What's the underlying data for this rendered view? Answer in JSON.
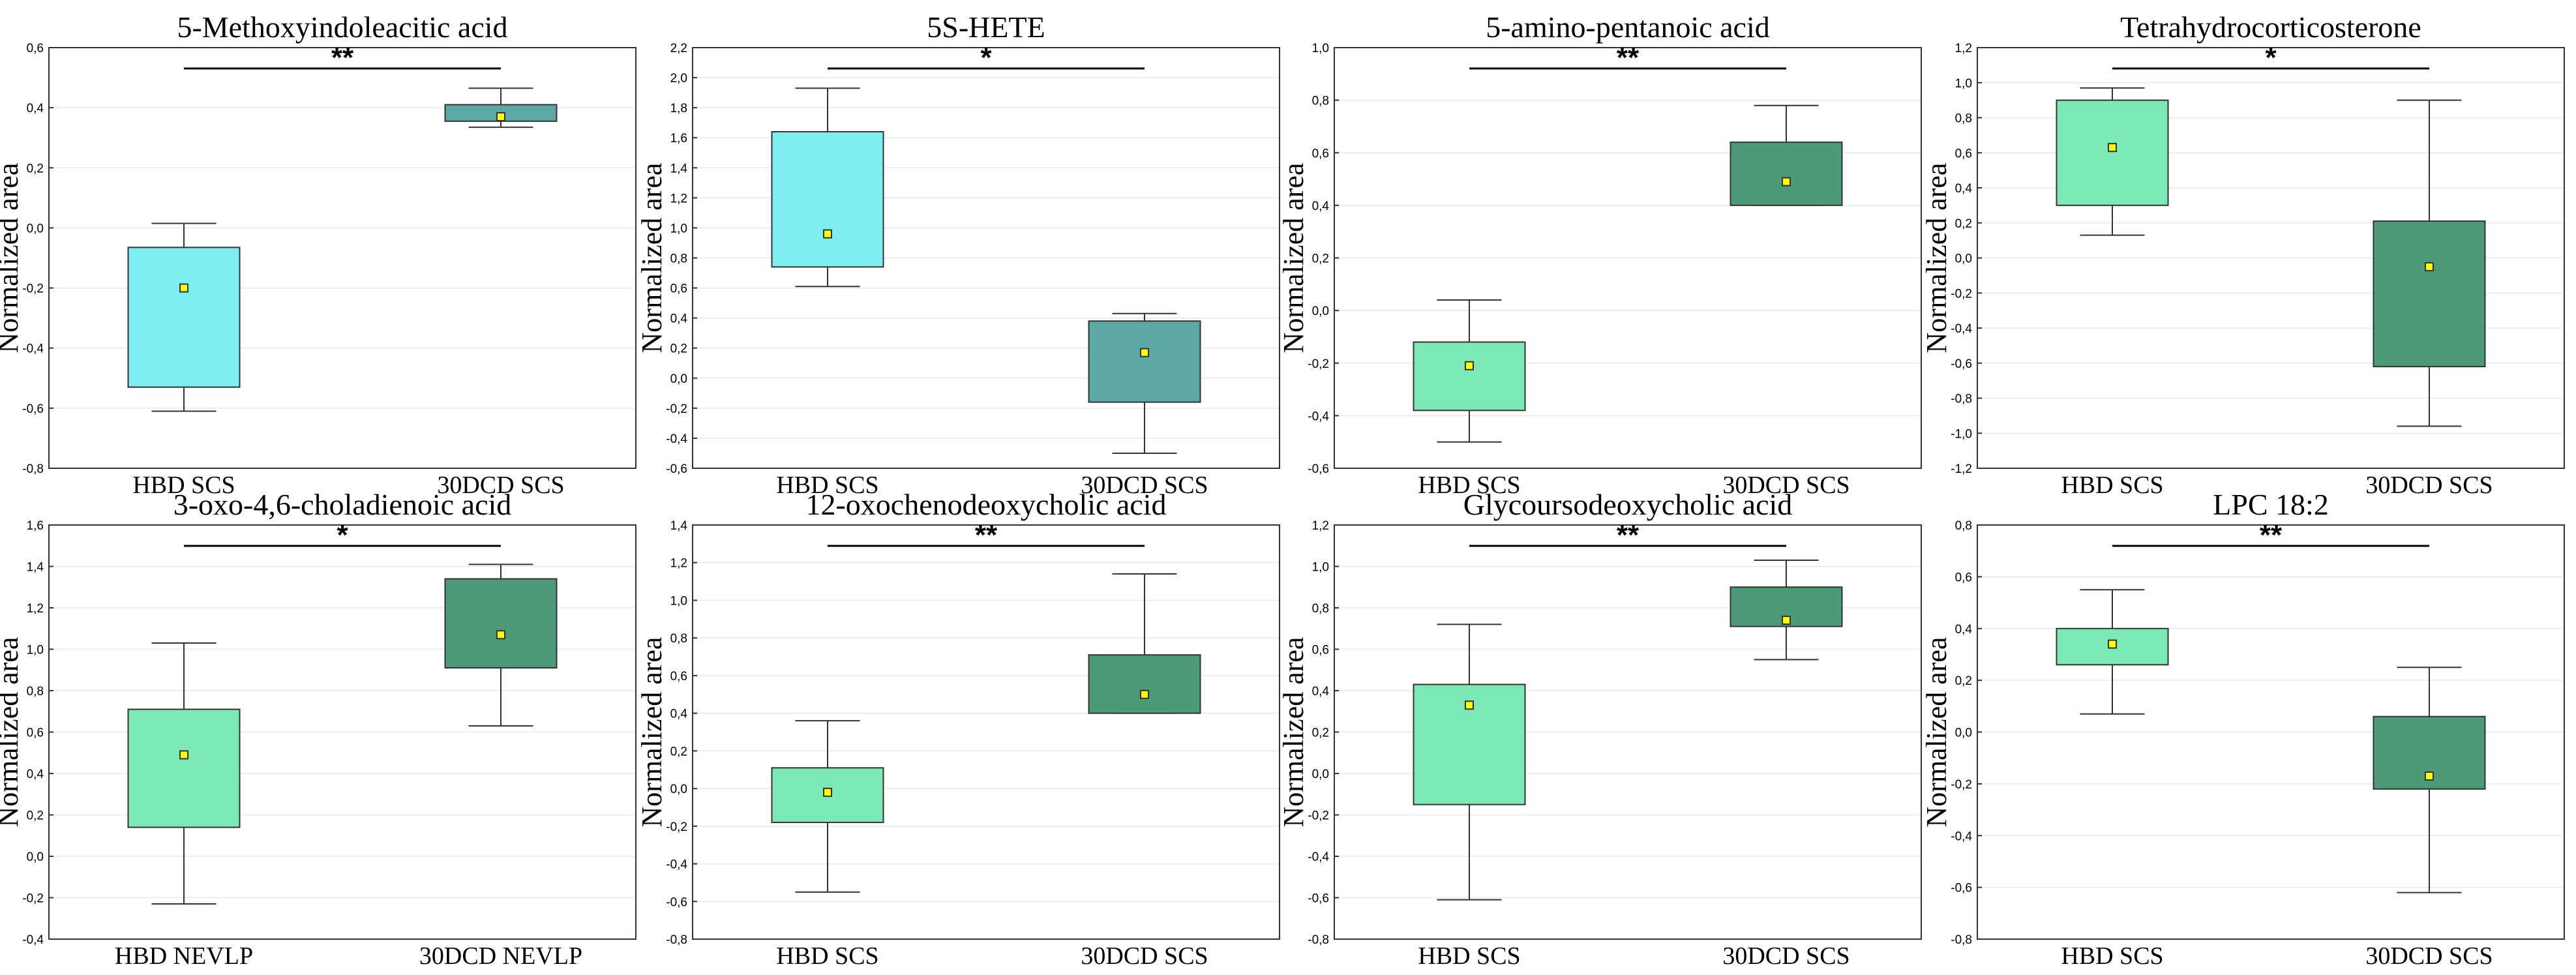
{
  "ylabel": "Normalized area",
  "colors": {
    "cyan": "#7eeff0",
    "teal": "#5ba8a6",
    "mint": "#7ce9b4",
    "green": "#4e9a78",
    "mean_marker": "#ffff00"
  },
  "chart_data": [
    {
      "type": "box",
      "title": "5-Methoxyindoleacitic acid",
      "ylabel": "Normalized area",
      "ylim": [
        -0.8,
        0.6
      ],
      "yticks": [
        "-0,8",
        "-0,6",
        "-0,4",
        "-0,2",
        "0,0",
        "0,2",
        "0,4",
        "0,6"
      ],
      "categories": [
        "HBD SCS",
        "30DCD SCS"
      ],
      "significance": "**",
      "series": [
        {
          "name": "HBD SCS",
          "whisker_low": -0.61,
          "q1": -0.53,
          "q3": -0.065,
          "whisker_high": 0.015,
          "mean": -0.2,
          "color": "#7eeff0"
        },
        {
          "name": "30DCD SCS",
          "whisker_low": 0.335,
          "q1": 0.355,
          "q3": 0.41,
          "whisker_high": 0.465,
          "mean": 0.37,
          "color": "#5ba8a6"
        }
      ]
    },
    {
      "type": "box",
      "title": "5S-HETE",
      "ylabel": "Normalized area",
      "ylim": [
        -0.6,
        2.2
      ],
      "yticks": [
        "-0,6",
        "-0,4",
        "-0,2",
        "0,0",
        "0,2",
        "0,4",
        "0,6",
        "0,8",
        "1,0",
        "1,2",
        "1,4",
        "1,6",
        "1,8",
        "2,0",
        "2,2"
      ],
      "categories": [
        "HBD SCS",
        "30DCD SCS"
      ],
      "significance": "*",
      "series": [
        {
          "name": "HBD SCS",
          "whisker_low": 0.61,
          "q1": 0.74,
          "q3": 1.64,
          "whisker_high": 1.93,
          "mean": 0.96,
          "color": "#7eeff0"
        },
        {
          "name": "30DCD SCS",
          "whisker_low": -0.5,
          "q1": -0.16,
          "q3": 0.38,
          "whisker_high": 0.43,
          "mean": 0.17,
          "color": "#5ba8a6"
        }
      ]
    },
    {
      "type": "box",
      "title": "5-amino-pentanoic acid",
      "ylabel": "Normalized area",
      "ylim": [
        -0.6,
        1.0
      ],
      "yticks": [
        "-0,6",
        "-0,4",
        "-0,2",
        "0,0",
        "0,2",
        "0,4",
        "0,6",
        "0,8",
        "1,0"
      ],
      "categories": [
        "HBD SCS",
        "30DCD SCS"
      ],
      "significance": "**",
      "series": [
        {
          "name": "HBD SCS",
          "whisker_low": -0.5,
          "q1": -0.38,
          "q3": -0.12,
          "whisker_high": 0.04,
          "mean": -0.21,
          "color": "#7ce9b4"
        },
        {
          "name": "30DCD SCS",
          "whisker_low": 0.4,
          "q1": 0.4,
          "q3": 0.64,
          "whisker_high": 0.78,
          "mean": 0.49,
          "color": "#4e9a78"
        }
      ]
    },
    {
      "type": "box",
      "title": "Tetrahydrocorticosterone",
      "ylabel": "Normalized area",
      "ylim": [
        -1.2,
        1.2
      ],
      "yticks": [
        "-1,2",
        "-1,0",
        "-0,8",
        "-0,6",
        "-0,4",
        "-0,2",
        "0,0",
        "0,2",
        "0,4",
        "0,6",
        "0,8",
        "1,0",
        "1,2"
      ],
      "categories": [
        "HBD SCS",
        "30DCD SCS"
      ],
      "significance": "*",
      "series": [
        {
          "name": "HBD SCS",
          "whisker_low": 0.13,
          "q1": 0.3,
          "q3": 0.9,
          "whisker_high": 0.97,
          "mean": 0.63,
          "color": "#7ce9b4"
        },
        {
          "name": "30DCD SCS",
          "whisker_low": -0.96,
          "q1": -0.62,
          "q3": 0.21,
          "whisker_high": 0.9,
          "mean": -0.05,
          "color": "#4e9a78"
        }
      ]
    },
    {
      "type": "box",
      "title": "3-oxo-4,6-choladienoic acid",
      "ylabel": "Normalized area",
      "ylim": [
        -0.4,
        1.6
      ],
      "yticks": [
        "-0,4",
        "-0,2",
        "0,0",
        "0,2",
        "0,4",
        "0,6",
        "0,8",
        "1,0",
        "1,2",
        "1,4",
        "1,6"
      ],
      "categories": [
        "HBD NEVLP",
        "30DCD NEVLP"
      ],
      "significance": "*",
      "series": [
        {
          "name": "HBD NEVLP",
          "whisker_low": -0.23,
          "q1": 0.14,
          "q3": 0.71,
          "whisker_high": 1.03,
          "mean": 0.49,
          "color": "#7ce9b4"
        },
        {
          "name": "30DCD NEVLP",
          "whisker_low": 0.63,
          "q1": 0.91,
          "q3": 1.34,
          "whisker_high": 1.41,
          "mean": 1.07,
          "color": "#4e9a78"
        }
      ]
    },
    {
      "type": "box",
      "title": "12-oxochenodeoxycholic acid",
      "ylabel": "Normalized area",
      "ylim": [
        -0.8,
        1.4
      ],
      "yticks": [
        "-0,8",
        "-0,6",
        "-0,4",
        "-0,2",
        "0,0",
        "0,2",
        "0,4",
        "0,6",
        "0,8",
        "1,0",
        "1,2",
        "1,4"
      ],
      "categories": [
        "HBD SCS",
        "30DCD SCS"
      ],
      "significance": "**",
      "series": [
        {
          "name": "HBD SCS",
          "whisker_low": -0.55,
          "q1": -0.18,
          "q3": 0.11,
          "whisker_high": 0.36,
          "mean": -0.02,
          "color": "#7ce9b4"
        },
        {
          "name": "30DCD SCS",
          "whisker_low": 0.4,
          "q1": 0.4,
          "q3": 0.71,
          "whisker_high": 1.14,
          "mean": 0.5,
          "color": "#4e9a78"
        }
      ]
    },
    {
      "type": "box",
      "title": "Glycoursodeoxycholic acid",
      "ylabel": "Normalized area",
      "ylim": [
        -0.8,
        1.2
      ],
      "yticks": [
        "-0,8",
        "-0,6",
        "-0,4",
        "-0,2",
        "0,0",
        "0,2",
        "0,4",
        "0,6",
        "0,8",
        "1,0",
        "1,2"
      ],
      "categories": [
        "HBD SCS",
        "30DCD SCS"
      ],
      "significance": "**",
      "series": [
        {
          "name": "HBD SCS",
          "whisker_low": -0.61,
          "q1": -0.15,
          "q3": 0.43,
          "whisker_high": 0.72,
          "mean": 0.33,
          "color": "#7ce9b4"
        },
        {
          "name": "30DCD SCS",
          "whisker_low": 0.55,
          "q1": 0.71,
          "q3": 0.9,
          "whisker_high": 1.03,
          "mean": 0.74,
          "color": "#4e9a78"
        }
      ]
    },
    {
      "type": "box",
      "title": "LPC 18:2",
      "ylabel": "Normalized area",
      "ylim": [
        -0.8,
        0.8
      ],
      "yticks": [
        "-0,8",
        "-0,6",
        "-0,4",
        "-0,2",
        "0,0",
        "0,2",
        "0,4",
        "0,6",
        "0,8"
      ],
      "categories": [
        "HBD SCS",
        "30DCD SCS"
      ],
      "significance": "**",
      "series": [
        {
          "name": "HBD SCS",
          "whisker_low": 0.07,
          "q1": 0.26,
          "q3": 0.4,
          "whisker_high": 0.55,
          "mean": 0.34,
          "color": "#7ce9b4"
        },
        {
          "name": "30DCD SCS",
          "whisker_low": -0.62,
          "q1": -0.22,
          "q3": 0.06,
          "whisker_high": 0.25,
          "mean": -0.17,
          "color": "#4e9a78"
        }
      ]
    }
  ]
}
